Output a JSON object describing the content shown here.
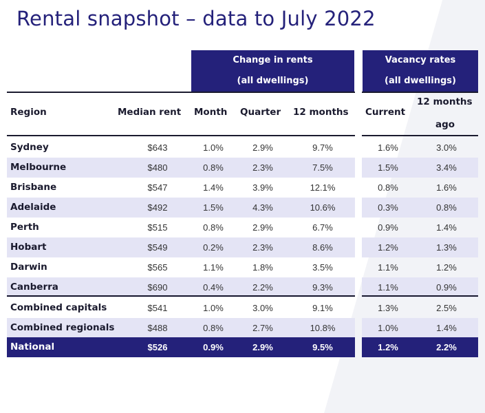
{
  "title": "Rental snapshot – data to July 2022",
  "groups": {
    "change_line1": "Change in rents",
    "change_line2": "(all dwellings)",
    "vacancy_line1": "Vacancy rates",
    "vacancy_line2": "(all dwellings)"
  },
  "headers": {
    "region": "Region",
    "median": "Median rent",
    "month": "Month",
    "quarter": "Quarter",
    "twelve": "12 months",
    "current": "Current",
    "ago_line1": "12 months",
    "ago_line2": "ago"
  },
  "rows": [
    {
      "region": "Sydney",
      "median": "$643",
      "month": "1.0%",
      "quarter": "2.9%",
      "twelve": "9.7%",
      "current": "1.6%",
      "ago": "3.0%"
    },
    {
      "region": "Melbourne",
      "median": "$480",
      "month": "0.8%",
      "quarter": "2.3%",
      "twelve": "7.5%",
      "current": "1.5%",
      "ago": "3.4%"
    },
    {
      "region": "Brisbane",
      "median": "$547",
      "month": "1.4%",
      "quarter": "3.9%",
      "twelve": "12.1%",
      "current": "0.8%",
      "ago": "1.6%"
    },
    {
      "region": "Adelaide",
      "median": "$492",
      "month": "1.5%",
      "quarter": "4.3%",
      "twelve": "10.6%",
      "current": "0.3%",
      "ago": "0.8%"
    },
    {
      "region": "Perth",
      "median": "$515",
      "month": "0.8%",
      "quarter": "2.9%",
      "twelve": "6.7%",
      "current": "0.9%",
      "ago": "1.4%"
    },
    {
      "region": "Hobart",
      "median": "$549",
      "month": "0.2%",
      "quarter": "2.3%",
      "twelve": "8.6%",
      "current": "1.2%",
      "ago": "1.3%"
    },
    {
      "region": "Darwin",
      "median": "$565",
      "month": "1.1%",
      "quarter": "1.8%",
      "twelve": "3.5%",
      "current": "1.1%",
      "ago": "1.2%"
    },
    {
      "region": "Canberra",
      "median": "$690",
      "month": "0.4%",
      "quarter": "2.2%",
      "twelve": "9.3%",
      "current": "1.1%",
      "ago": "0.9%"
    },
    {
      "region": "Combined capitals",
      "median": "$541",
      "month": "1.0%",
      "quarter": "3.0%",
      "twelve": "9.1%",
      "current": "1.3%",
      "ago": "2.5%"
    },
    {
      "region": "Combined regionals",
      "median": "$488",
      "month": "0.8%",
      "quarter": "2.7%",
      "twelve": "10.8%",
      "current": "1.0%",
      "ago": "1.4%"
    },
    {
      "region": "National",
      "median": "$526",
      "month": "0.9%",
      "quarter": "2.9%",
      "twelve": "9.5%",
      "current": "1.2%",
      "ago": "2.2%"
    }
  ],
  "colors": {
    "navy": "#24217a",
    "shade": "#e4e4f5"
  }
}
